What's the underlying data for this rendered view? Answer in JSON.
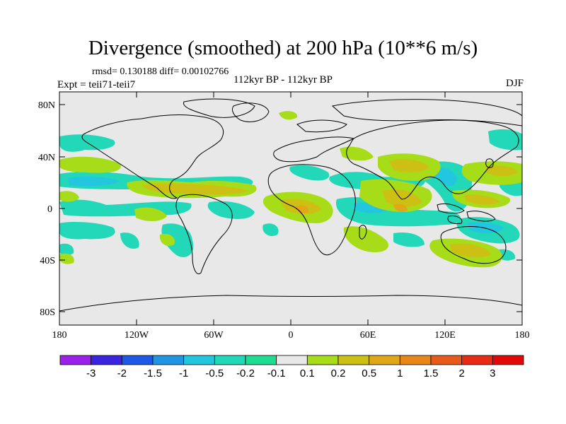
{
  "title": "Divergence (smoothed) at 200 hPa (10**6 m/s)",
  "stats": "rmsd= 0.130188 diff= 0.00102766",
  "experiment": "Expt = teii71-teii7",
  "period": "112kyr BP - 112kyr BP",
  "season": "DJF",
  "lat_ticks": [
    "80N",
    "40N",
    "0",
    "40S",
    "80S"
  ],
  "lon_ticks": [
    "180",
    "120W",
    "60W",
    "0",
    "60E",
    "120E",
    "180"
  ],
  "colorbar": {
    "labels": [
      "-3",
      "-2",
      "-1.5",
      "-1",
      "-0.5",
      "-0.2",
      "-0.1",
      "0.1",
      "0.2",
      "0.5",
      "1",
      "1.5",
      "2",
      "3"
    ],
    "colors": [
      "#9a20ea",
      "#3a24e0",
      "#1e58e6",
      "#1f96e4",
      "#22c6de",
      "#22d8b8",
      "#1edc92",
      "#e8e8e8",
      "#a6dc18",
      "#cdc014",
      "#e0a816",
      "#e8861a",
      "#e85a1a",
      "#e82c14",
      "#e00808"
    ]
  },
  "colors": {
    "background": "#e8e8e8",
    "neg_weak": "#22d8b8",
    "neg_mid": "#22c6de",
    "pos_weak": "#a6dc18",
    "pos_mid": "#cdc014",
    "pos_strong": "#e0a816"
  }
}
